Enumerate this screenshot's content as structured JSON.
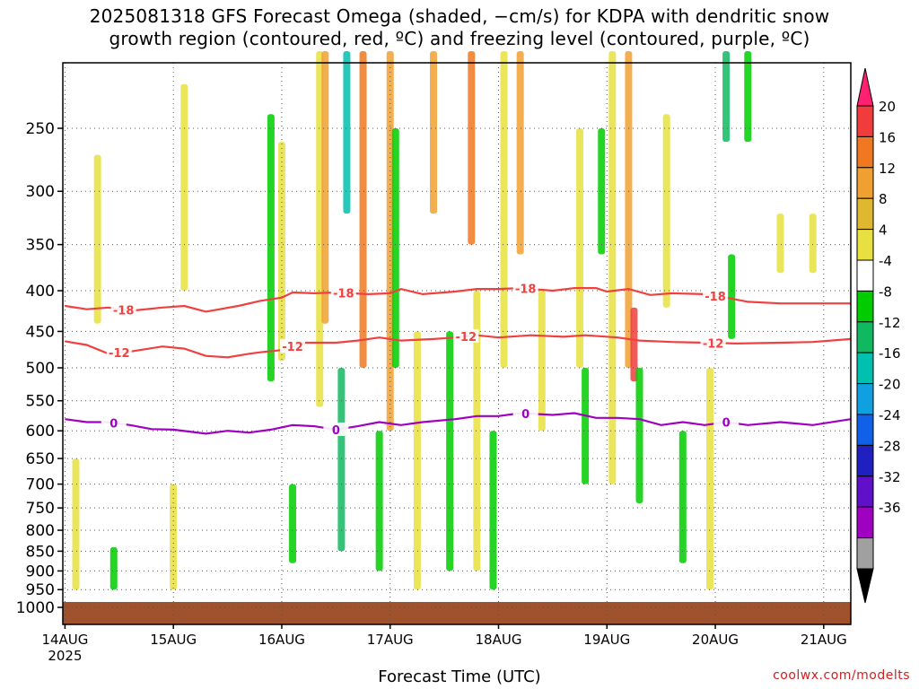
{
  "title": {
    "line1": "2025081318 GFS Forecast Omega (shaded, −cm/s) for KDPA with dendritic snow",
    "line2": "growth region (contoured, red, ºC) and freezing level (contoured, purple, ºC)"
  },
  "credit": "coolwx.com/modelts",
  "chart_data": {
    "type": "heatmap",
    "xlabel": "Forecast Time (UTC)",
    "ylabel": "",
    "x_ticks": [
      "14AUG",
      "15AUG",
      "16AUG",
      "17AUG",
      "18AUG",
      "19AUG",
      "20AUG",
      "21AUG"
    ],
    "x_tick_year": "2025",
    "x_range_days": [
      13.98,
      21.25
    ],
    "y_ticks": [
      250,
      300,
      350,
      400,
      450,
      500,
      550,
      600,
      650,
      700,
      750,
      800,
      850,
      900,
      950,
      1000
    ],
    "y_range_hpa": [
      200,
      1000
    ],
    "y_scale": "log-pressure",
    "grid": true,
    "colorbar": {
      "ticks": [
        "20",
        "16",
        "12",
        "8",
        "4",
        "-4",
        "-8",
        "-12",
        "-16",
        "-20",
        "-24",
        "-28",
        "-32",
        "-36"
      ],
      "colors": [
        "#ff2070",
        "#f03c3c",
        "#f07820",
        "#f0a030",
        "#e0b830",
        "#e8e040",
        "#ffffff",
        "#00cc00",
        "#10b860",
        "#00c0b0",
        "#10a0e0",
        "#1060e8",
        "#2020c0",
        "#6010c8",
        "#a000c0",
        "#a0a0a0",
        "#000000"
      ]
    },
    "contours": [
      {
        "label": "-18",
        "color": "#f04040",
        "points": [
          [
            14.0,
            418
          ],
          [
            14.2,
            422
          ],
          [
            14.4,
            420
          ],
          [
            14.6,
            424
          ],
          [
            14.9,
            420
          ],
          [
            15.1,
            418
          ],
          [
            15.3,
            425
          ],
          [
            15.6,
            418
          ],
          [
            15.8,
            412
          ],
          [
            16.0,
            408
          ],
          [
            16.1,
            402
          ],
          [
            16.3,
            403
          ],
          [
            16.5,
            402
          ],
          [
            16.8,
            404
          ],
          [
            17.0,
            403
          ],
          [
            17.1,
            398
          ],
          [
            17.3,
            404
          ],
          [
            17.6,
            401
          ],
          [
            17.8,
            398
          ],
          [
            18.0,
            398
          ],
          [
            18.2,
            397
          ],
          [
            18.5,
            400
          ],
          [
            18.7,
            397
          ],
          [
            18.9,
            397
          ],
          [
            19.0,
            401
          ],
          [
            19.2,
            398
          ],
          [
            19.4,
            405
          ],
          [
            19.6,
            403
          ],
          [
            19.9,
            404
          ],
          [
            20.1,
            408
          ],
          [
            20.3,
            413
          ],
          [
            20.6,
            415
          ],
          [
            20.9,
            415
          ],
          [
            21.25,
            415
          ]
        ],
        "labels": [
          [
            14.54,
            "-18"
          ],
          [
            16.57,
            "-18"
          ],
          [
            18.25,
            "-18"
          ],
          [
            20.0,
            "-18"
          ]
        ]
      },
      {
        "label": "-12",
        "color": "#f04040",
        "points": [
          [
            14.0,
            463
          ],
          [
            14.2,
            468
          ],
          [
            14.4,
            480
          ],
          [
            14.6,
            477
          ],
          [
            14.9,
            470
          ],
          [
            15.1,
            473
          ],
          [
            15.3,
            483
          ],
          [
            15.5,
            485
          ],
          [
            15.7,
            480
          ],
          [
            15.8,
            478
          ],
          [
            16.0,
            475
          ],
          [
            16.2,
            465
          ],
          [
            16.5,
            465
          ],
          [
            16.7,
            462
          ],
          [
            16.9,
            458
          ],
          [
            17.1,
            462
          ],
          [
            17.4,
            460
          ],
          [
            17.6,
            458
          ],
          [
            17.8,
            455
          ],
          [
            18.0,
            458
          ],
          [
            18.3,
            455
          ],
          [
            18.6,
            457
          ],
          [
            18.8,
            455
          ],
          [
            19.1,
            458
          ],
          [
            19.3,
            462
          ],
          [
            19.6,
            464
          ],
          [
            19.9,
            465
          ],
          [
            20.2,
            466
          ],
          [
            20.6,
            465
          ],
          [
            20.9,
            464
          ],
          [
            21.25,
            460
          ]
        ],
        "labels": [
          [
            14.5,
            "-12"
          ],
          [
            16.1,
            "-12"
          ],
          [
            17.7,
            "-12"
          ],
          [
            19.98,
            "-12"
          ]
        ]
      },
      {
        "label": "0",
        "color": "#a000c0",
        "points": [
          [
            14.0,
            580
          ],
          [
            14.2,
            585
          ],
          [
            14.4,
            585
          ],
          [
            14.6,
            590
          ],
          [
            14.8,
            597
          ],
          [
            15.0,
            598
          ],
          [
            15.3,
            605
          ],
          [
            15.5,
            600
          ],
          [
            15.7,
            603
          ],
          [
            15.9,
            598
          ],
          [
            16.1,
            590
          ],
          [
            16.3,
            592
          ],
          [
            16.5,
            598
          ],
          [
            16.7,
            592
          ],
          [
            16.9,
            585
          ],
          [
            17.1,
            590
          ],
          [
            17.3,
            585
          ],
          [
            17.6,
            580
          ],
          [
            17.8,
            575
          ],
          [
            18.0,
            575
          ],
          [
            18.2,
            570
          ],
          [
            18.5,
            573
          ],
          [
            18.7,
            570
          ],
          [
            18.9,
            578
          ],
          [
            19.1,
            578
          ],
          [
            19.3,
            580
          ],
          [
            19.5,
            590
          ],
          [
            19.7,
            585
          ],
          [
            19.9,
            590
          ],
          [
            20.1,
            585
          ],
          [
            20.3,
            590
          ],
          [
            20.6,
            585
          ],
          [
            20.9,
            590
          ],
          [
            21.25,
            580
          ]
        ],
        "labels": [
          [
            14.45,
            "0"
          ],
          [
            16.5,
            "0"
          ],
          [
            18.25,
            "0"
          ],
          [
            20.1,
            "0"
          ]
        ]
      }
    ]
  }
}
